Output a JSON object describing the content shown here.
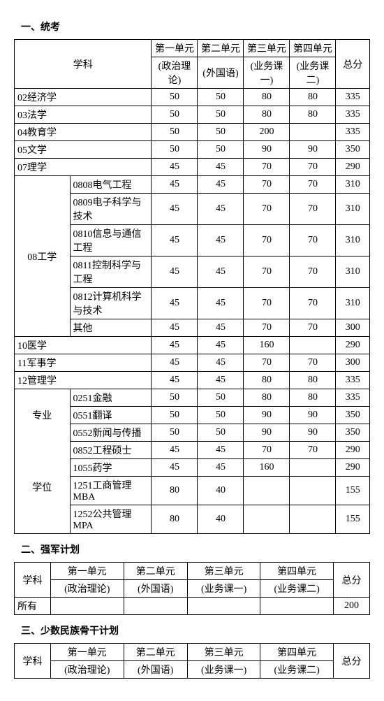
{
  "section1": {
    "title": "一、统考",
    "headers": {
      "subject": "学科",
      "unit1": "第一单元",
      "unit2": "第二单元",
      "unit3": "第三单元",
      "unit4": "第四单元",
      "total": "总分",
      "sub1": "(政治理论)",
      "sub2": "(外国语)",
      "sub3": "(业务课一)",
      "sub4": "(业务课二)"
    },
    "rows_simple": [
      {
        "name": "02经济学",
        "u1": "50",
        "u2": "50",
        "u3": "80",
        "u4": "80",
        "t": "335"
      },
      {
        "name": "03法学",
        "u1": "50",
        "u2": "50",
        "u3": "80",
        "u4": "80",
        "t": "335"
      },
      {
        "name": "04教育学",
        "u1": "50",
        "u2": "50",
        "u3": "200",
        "u4": "",
        "t": "335"
      },
      {
        "name": "05文学",
        "u1": "50",
        "u2": "50",
        "u3": "90",
        "u4": "90",
        "t": "350"
      },
      {
        "name": "07理学",
        "u1": "45",
        "u2": "45",
        "u3": "70",
        "u4": "70",
        "t": "290"
      }
    ],
    "eng_group": {
      "label": "08工学",
      "rows": [
        {
          "name": "0808电气工程",
          "u1": "45",
          "u2": "45",
          "u3": "70",
          "u4": "70",
          "t": "310"
        },
        {
          "name": "0809电子科学与技术",
          "u1": "45",
          "u2": "45",
          "u3": "70",
          "u4": "70",
          "t": "310"
        },
        {
          "name": "0810信息与通信工程",
          "u1": "45",
          "u2": "45",
          "u3": "70",
          "u4": "70",
          "t": "310"
        },
        {
          "name": "0811控制科学与工程",
          "u1": "45",
          "u2": "45",
          "u3": "70",
          "u4": "70",
          "t": "310"
        },
        {
          "name": "0812计算机科学与技术",
          "u1": "45",
          "u2": "45",
          "u3": "70",
          "u4": "70",
          "t": "310"
        },
        {
          "name": "其他",
          "u1": "45",
          "u2": "45",
          "u3": "70",
          "u4": "70",
          "t": "300"
        }
      ]
    },
    "rows_simple2": [
      {
        "name": "10医学",
        "u1": "45",
        "u2": "45",
        "u3": "160",
        "u4": "",
        "t": "290"
      },
      {
        "name": "11军事学",
        "u1": "45",
        "u2": "45",
        "u3": "70",
        "u4": "70",
        "t": "300"
      },
      {
        "name": "12管理学",
        "u1": "45",
        "u2": "45",
        "u3": "80",
        "u4": "80",
        "t": "335"
      }
    ],
    "prof_group": {
      "label1": "专业",
      "label2": "学位",
      "rows": [
        {
          "name": "0251金融",
          "u1": "50",
          "u2": "50",
          "u3": "80",
          "u4": "80",
          "t": "335"
        },
        {
          "name": "0551翻译",
          "u1": "50",
          "u2": "50",
          "u3": "90",
          "u4": "90",
          "t": "350"
        },
        {
          "name": "0552新闻与传播",
          "u1": "50",
          "u2": "50",
          "u3": "90",
          "u4": "90",
          "t": "350"
        },
        {
          "name": "0852工程硕士",
          "u1": "45",
          "u2": "45",
          "u3": "70",
          "u4": "70",
          "t": "290"
        },
        {
          "name": "1055药学",
          "u1": "45",
          "u2": "45",
          "u3": "160",
          "u4": "",
          "t": "290"
        },
        {
          "name": "1251工商管理MBA",
          "u1": "80",
          "u2": "40",
          "u3": "",
          "u4": "",
          "t": "155"
        },
        {
          "name": "1252公共管理MPA",
          "u1": "80",
          "u2": "40",
          "u3": "",
          "u4": "",
          "t": "155"
        }
      ]
    }
  },
  "section2": {
    "title": "二、强军计划",
    "headers": {
      "subject": "学科",
      "unit1": "第一单元",
      "unit2": "第二单元",
      "unit3": "第三单元",
      "unit4": "第四单元",
      "total": "总分",
      "sub1": "(政治理论)",
      "sub2": "(外国语)",
      "sub3": "(业务课一)",
      "sub4": "(业务课二)"
    },
    "row": {
      "name": "所有",
      "u1": "",
      "u2": "",
      "u3": "",
      "u4": "",
      "t": "200"
    }
  },
  "section3": {
    "title": "三、少数民族骨干计划",
    "headers": {
      "subject": "学科",
      "unit1": "第一单元",
      "unit2": "第二单元",
      "unit3": "第三单元",
      "unit4": "第四单元",
      "total": "总分",
      "sub1": "(政治理论)",
      "sub2": "(外国语)",
      "sub3": "(业务课一)",
      "sub4": "(业务课二)"
    }
  }
}
